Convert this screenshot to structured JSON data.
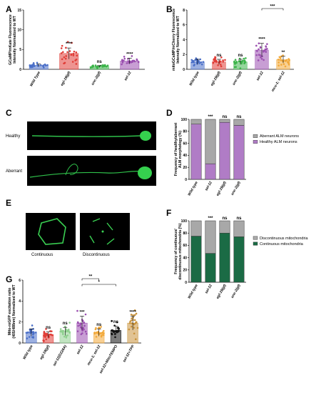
{
  "panels": {
    "A": {
      "label": "A"
    },
    "B": {
      "label": "B"
    },
    "C": {
      "label": "C",
      "healthy": "Healthy",
      "aberrant": "Aberrant"
    },
    "D": {
      "label": "D"
    },
    "E": {
      "label": "E",
      "continuous": "Continuous",
      "discontinuous": "Discontinuous"
    },
    "F": {
      "label": "F"
    },
    "G": {
      "label": "G"
    }
  },
  "colors": {
    "blue": "#4a6fc8",
    "red": "#e03c36",
    "green": "#3cb44a",
    "purple": "#9b4fb0",
    "orange": "#f2a93a",
    "lightgreen": "#8fd08f",
    "black": "#111111",
    "tan": "#c8923a",
    "morph_purple": "#b07cc6",
    "mito_green": "#1b6b45",
    "grey": "#a8a8a8"
  },
  "chart_data": [
    {
      "id": "A",
      "type": "bar",
      "ylabel": "GCaMP/mKate Fluorescence Intensity Normalized to WT",
      "categories": [
        "Wild Type",
        "egl-19(gf)",
        "unc-2(gf)",
        "sel-12"
      ],
      "values": [
        1.0,
        4.0,
        0.7,
        2.1
      ],
      "yticks": [
        0,
        5,
        10,
        15
      ],
      "ylim": [
        0,
        15
      ],
      "significance": [
        "",
        "****",
        "ns",
        "****"
      ]
    },
    {
      "id": "B",
      "type": "bar",
      "ylabel": "mitoGCaMP/mCherry Fluorescence Intensity Normalized to WT",
      "categories": [
        "Wild type",
        "egl-19(gf)",
        "unc-2(gf)",
        "sel-12",
        "mcu-1; sel-12"
      ],
      "values": [
        1.0,
        1.0,
        1.0,
        2.6,
        1.3
      ],
      "yticks": [
        0,
        2,
        4,
        6,
        8
      ],
      "ylim": [
        0,
        8
      ],
      "significance": [
        "",
        "ns",
        "ns",
        "****",
        "**"
      ],
      "bracket": {
        "from": "sel-12",
        "to": "mcu-1; sel-12",
        "label": "***"
      }
    },
    {
      "id": "D",
      "type": "bar",
      "ylabel": "Frequency of healthy/aberrant ALM morphology (%)",
      "categories": [
        "Wild type",
        "sel-12",
        "egl-19(gf)",
        "unc-2(gf)"
      ],
      "yticks": [
        0,
        20,
        40,
        60,
        80,
        100
      ],
      "ylim": [
        0,
        100
      ],
      "series": [
        {
          "name": "Healthy ALM neurons",
          "values": [
            92,
            26,
            95,
            90
          ]
        },
        {
          "name": "Aberrant ALM neurons",
          "values": [
            8,
            74,
            5,
            10
          ]
        }
      ],
      "significance": [
        "",
        "***",
        "ns",
        "ns"
      ]
    },
    {
      "id": "F",
      "type": "bar",
      "ylabel": "Frequency of continuous/ discontinuous mitochondria (%)",
      "categories": [
        "Wild type",
        "sel-12",
        "egl-19(gf)",
        "unc-2(gf)"
      ],
      "yticks": [
        0,
        20,
        40,
        60,
        80,
        100
      ],
      "ylim": [
        0,
        100
      ],
      "series": [
        {
          "name": "Continuous mitochondria",
          "values": [
            75,
            47,
            80,
            74
          ]
        },
        {
          "name": "Discontinuous mitochondria",
          "values": [
            25,
            53,
            20,
            26
          ]
        }
      ],
      "significance": [
        "",
        "***",
        "ns",
        "ns"
      ]
    },
    {
      "id": "G",
      "type": "bar",
      "ylabel": "Mito-roGFP excitation ratio (405/488nm) Normalized to WT",
      "categories": [
        "Wild type",
        "egl-19(gf)",
        "sel-12(D226A)",
        "sel-12",
        "mcu-1; sel-12",
        "sel-12+MitoTEMPO",
        "sel-12+TPP"
      ],
      "values": [
        1.0,
        0.8,
        1.1,
        1.9,
        1.0,
        1.2,
        1.9
      ],
      "yticks": [
        0,
        2,
        4,
        6
      ],
      "ylim": [
        0,
        6
      ],
      "significance": [
        "",
        "ns",
        "ns",
        "***",
        "ns",
        "ns",
        "****"
      ],
      "brackets": [
        {
          "from": "sel-12",
          "to": "mcu-1; sel-12",
          "label": "**"
        },
        {
          "from": "sel-12",
          "to": "sel-12+MitoTEMPO",
          "label": "*"
        }
      ]
    }
  ]
}
